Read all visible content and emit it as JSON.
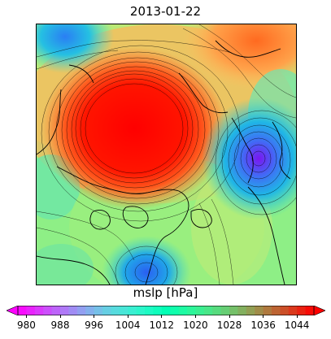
{
  "title": "2013-01-22",
  "colorbar": {
    "label": "mslp [hPa]",
    "min": 978,
    "max": 1048,
    "tick_values": [
      980,
      988,
      996,
      1004,
      1012,
      1020,
      1028,
      1036,
      1044
    ],
    "tick_labels": [
      "980",
      "988",
      "996",
      "1004",
      "1012",
      "1020",
      "1028",
      "1036",
      "1044"
    ],
    "colormap": "rainbow"
  },
  "map": {
    "projection": "polar-stereographic",
    "field": "mslp",
    "contour_interval_hpa": 1,
    "features": [
      "high-pressure-center-arctic",
      "low-pressure-center-east",
      "low-pressure-south",
      "coastlines"
    ]
  }
}
